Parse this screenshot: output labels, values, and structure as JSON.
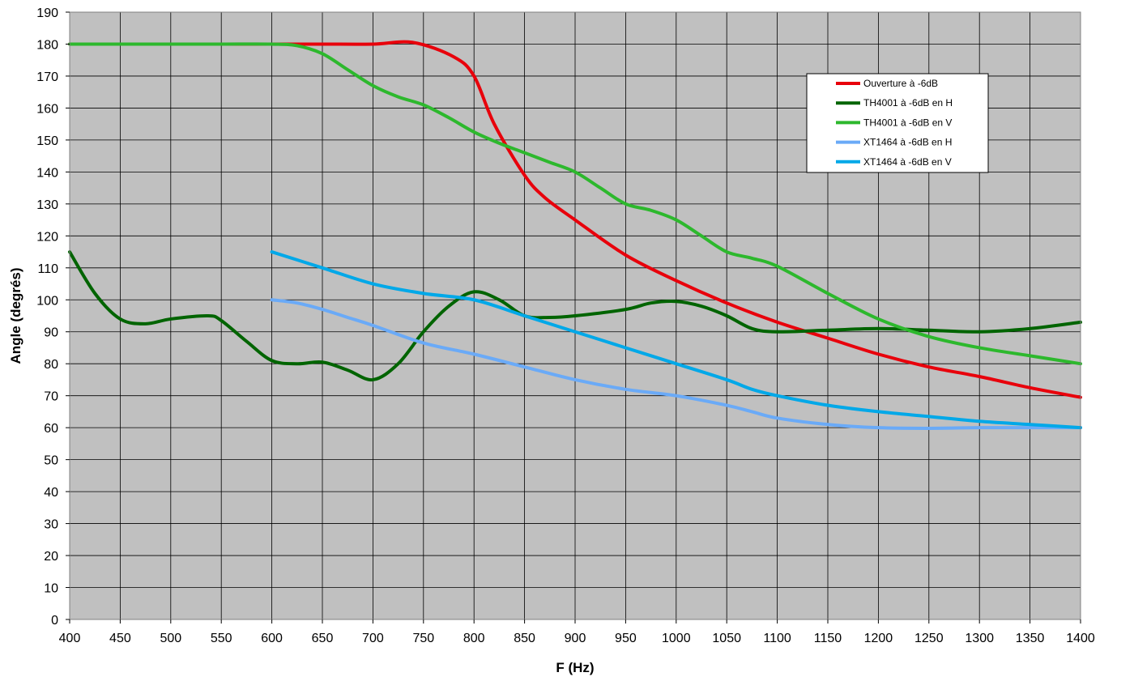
{
  "chart_data": {
    "type": "line",
    "title": "",
    "xlabel": "F (Hz)",
    "ylabel": "Angle (degrés)",
    "xlim": [
      400,
      1400
    ],
    "ylim": [
      0,
      190
    ],
    "x_ticks": [
      400,
      450,
      500,
      550,
      600,
      650,
      700,
      750,
      800,
      850,
      900,
      950,
      1000,
      1050,
      1100,
      1150,
      1200,
      1250,
      1300,
      1350,
      1400
    ],
    "y_ticks": [
      0,
      10,
      20,
      30,
      40,
      50,
      60,
      70,
      80,
      90,
      100,
      110,
      120,
      130,
      140,
      150,
      160,
      170,
      180,
      190
    ],
    "grid": true,
    "legend_position": "top-right",
    "plot_background": "#c0c0c0",
    "series": [
      {
        "name": "Ouverture à -6dB",
        "color": "#e8000b",
        "points": [
          [
            400,
            180
          ],
          [
            500,
            180
          ],
          [
            600,
            180
          ],
          [
            650,
            180
          ],
          [
            700,
            180
          ],
          [
            740,
            180.5
          ],
          [
            780,
            176
          ],
          [
            800,
            170
          ],
          [
            820,
            155
          ],
          [
            850,
            139
          ],
          [
            870,
            132
          ],
          [
            900,
            125
          ],
          [
            950,
            114
          ],
          [
            1000,
            106
          ],
          [
            1050,
            99
          ],
          [
            1100,
            93
          ],
          [
            1150,
            88
          ],
          [
            1200,
            83
          ],
          [
            1250,
            79
          ],
          [
            1300,
            76
          ],
          [
            1350,
            72.5
          ],
          [
            1400,
            69.5
          ]
        ]
      },
      {
        "name": "TH4001 à -6dB en H",
        "color": "#006400",
        "points": [
          [
            400,
            115
          ],
          [
            425,
            102
          ],
          [
            450,
            94
          ],
          [
            475,
            92.5
          ],
          [
            500,
            94
          ],
          [
            537,
            95
          ],
          [
            550,
            93.5
          ],
          [
            575,
            87
          ],
          [
            600,
            81
          ],
          [
            625,
            80
          ],
          [
            650,
            80.5
          ],
          [
            675,
            78
          ],
          [
            700,
            75
          ],
          [
            725,
            80
          ],
          [
            750,
            90
          ],
          [
            775,
            98
          ],
          [
            800,
            102.5
          ],
          [
            825,
            100
          ],
          [
            850,
            95
          ],
          [
            875,
            94.5
          ],
          [
            900,
            95
          ],
          [
            950,
            97
          ],
          [
            975,
            99
          ],
          [
            1000,
            99.5
          ],
          [
            1025,
            98
          ],
          [
            1050,
            95
          ],
          [
            1075,
            91
          ],
          [
            1100,
            90
          ],
          [
            1150,
            90.5
          ],
          [
            1200,
            91
          ],
          [
            1250,
            90.5
          ],
          [
            1300,
            90
          ],
          [
            1350,
            91
          ],
          [
            1400,
            93
          ]
        ]
      },
      {
        "name": "TH4001 à -6dB en V",
        "color": "#2db82d",
        "points": [
          [
            400,
            180
          ],
          [
            450,
            180
          ],
          [
            500,
            180
          ],
          [
            550,
            180
          ],
          [
            600,
            180
          ],
          [
            625,
            179.5
          ],
          [
            650,
            177
          ],
          [
            675,
            172
          ],
          [
            700,
            167
          ],
          [
            725,
            163.5
          ],
          [
            750,
            161
          ],
          [
            775,
            157
          ],
          [
            800,
            152.5
          ],
          [
            825,
            149
          ],
          [
            850,
            146
          ],
          [
            875,
            143
          ],
          [
            900,
            140
          ],
          [
            925,
            135
          ],
          [
            950,
            130
          ],
          [
            975,
            128
          ],
          [
            1000,
            125
          ],
          [
            1025,
            120
          ],
          [
            1050,
            115
          ],
          [
            1075,
            113
          ],
          [
            1100,
            110.5
          ],
          [
            1150,
            102
          ],
          [
            1200,
            94
          ],
          [
            1250,
            88.5
          ],
          [
            1300,
            85
          ],
          [
            1350,
            82.5
          ],
          [
            1400,
            80
          ]
        ]
      },
      {
        "name": "XT1464 à -6dB en H",
        "color": "#6aaaf7",
        "points": [
          [
            600,
            100
          ],
          [
            625,
            99
          ],
          [
            650,
            97
          ],
          [
            675,
            94.5
          ],
          [
            700,
            92
          ],
          [
            750,
            86.5
          ],
          [
            800,
            83
          ],
          [
            850,
            79
          ],
          [
            900,
            75
          ],
          [
            950,
            72
          ],
          [
            1000,
            70
          ],
          [
            1050,
            67
          ],
          [
            1075,
            65
          ],
          [
            1100,
            63
          ],
          [
            1150,
            61
          ],
          [
            1200,
            60
          ],
          [
            1250,
            59.8
          ],
          [
            1300,
            60
          ],
          [
            1350,
            60
          ],
          [
            1400,
            60
          ]
        ]
      },
      {
        "name": "XT1464 à -6dB en V",
        "color": "#00a8e8",
        "points": [
          [
            600,
            115
          ],
          [
            650,
            110
          ],
          [
            700,
            105
          ],
          [
            750,
            102
          ],
          [
            800,
            100
          ],
          [
            850,
            95
          ],
          [
            900,
            90
          ],
          [
            950,
            85
          ],
          [
            1000,
            80
          ],
          [
            1050,
            75
          ],
          [
            1075,
            72
          ],
          [
            1100,
            70
          ],
          [
            1150,
            67
          ],
          [
            1200,
            65
          ],
          [
            1250,
            63.5
          ],
          [
            1300,
            62
          ],
          [
            1350,
            61
          ],
          [
            1400,
            60
          ]
        ]
      }
    ]
  }
}
